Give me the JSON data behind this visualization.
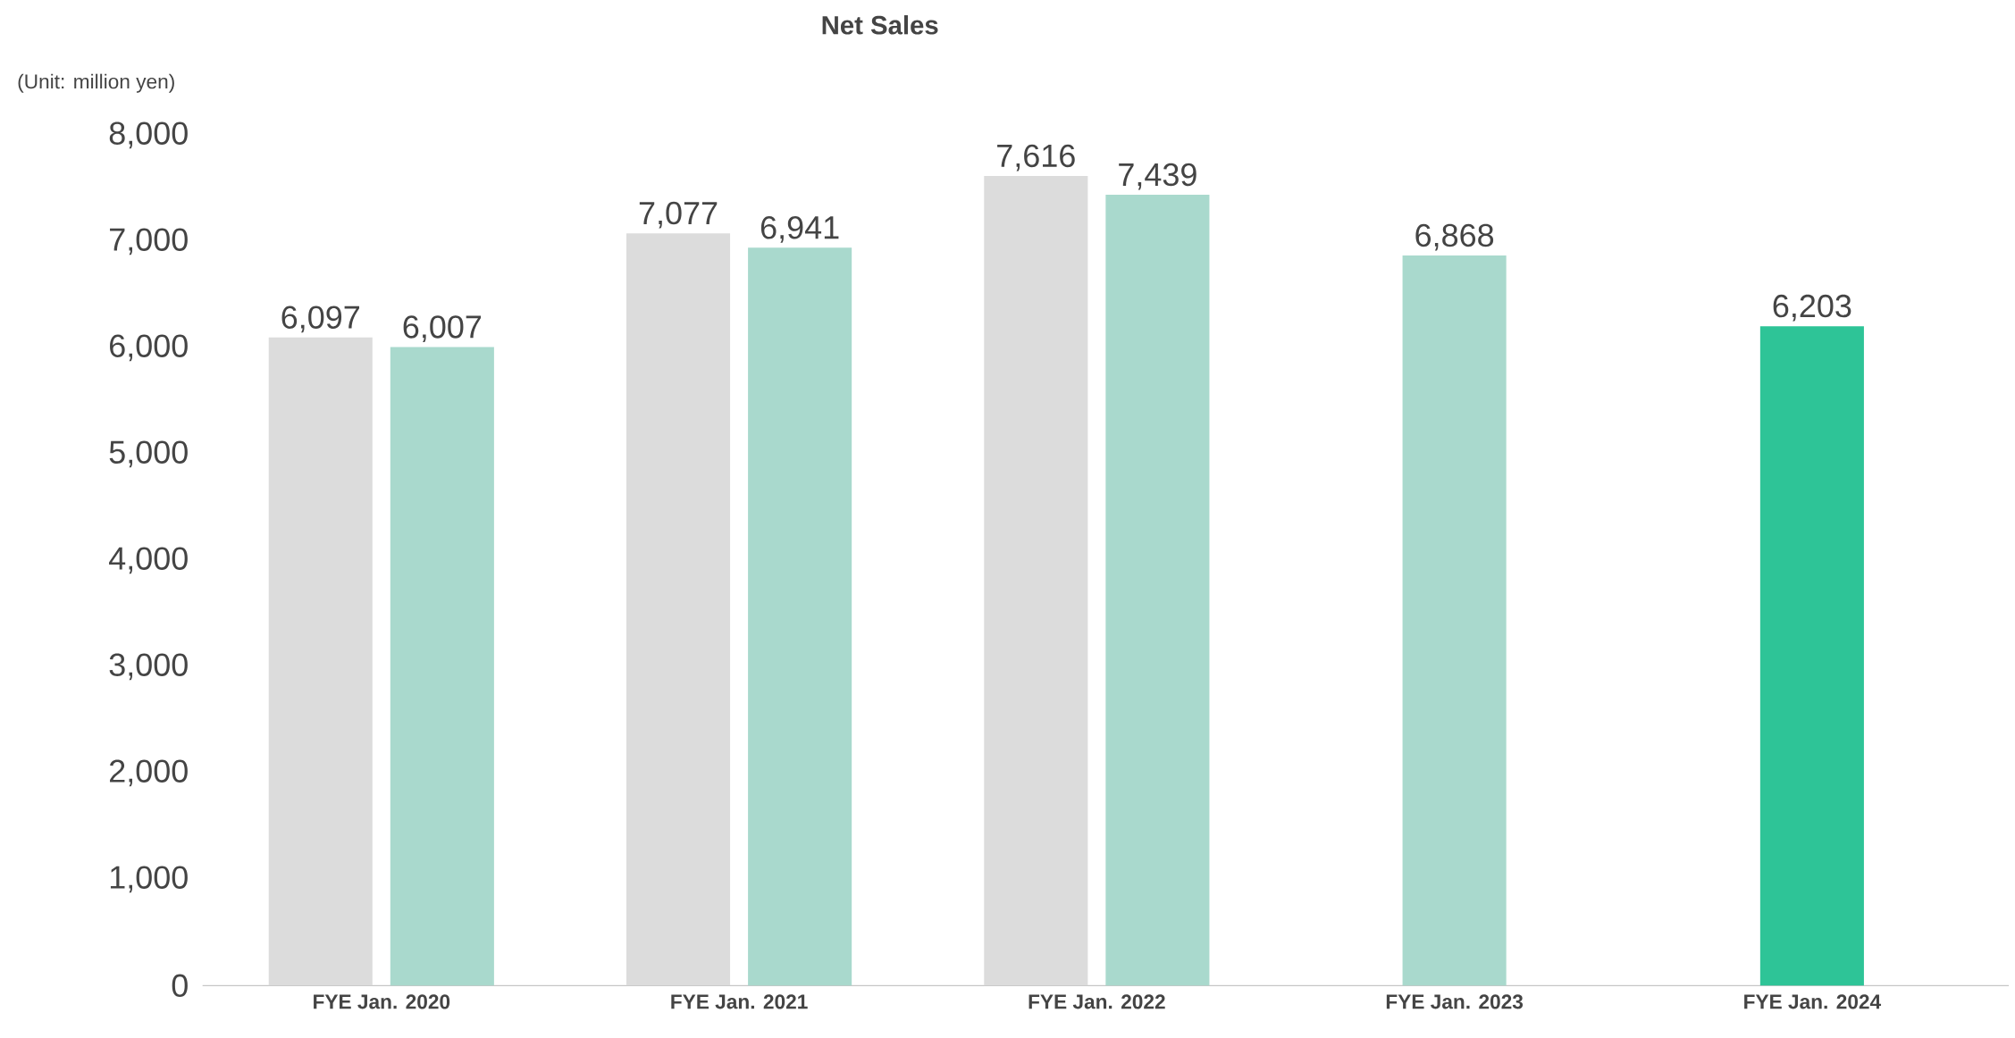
{
  "chart_data": {
    "type": "bar",
    "title": "Net Sales",
    "annotations": [
      "(Unit: million yen)"
    ],
    "categories": [
      "FYE Jan. 2020",
      "FYE Jan. 2021",
      "FYE Jan. 2022",
      "FYE Jan. 2023",
      "FYE Jan. 2024"
    ],
    "series": [
      {
        "color": "#dcdcdc",
        "values": [
          6097,
          7077,
          7616,
          null,
          null
        ],
        "value_labels": [
          "6,097",
          "7,077",
          "7,616",
          null,
          null
        ]
      },
      {
        "color": "#a9d9cd",
        "colors": [
          "#a9d9cd",
          "#a9d9cd",
          "#a9d9cd",
          "#a9d9cd",
          "#2ec497"
        ],
        "values": [
          6007,
          6941,
          7439,
          6868,
          6203
        ],
        "value_labels": [
          "6,007",
          "6,941",
          "7,439",
          "6,868",
          "6,203"
        ]
      }
    ],
    "ylim": [
      0,
      8000
    ],
    "yticks": [
      {
        "value": 0,
        "label": "0"
      },
      {
        "value": 1000,
        "label": "1,000"
      },
      {
        "value": 2000,
        "label": "2,000"
      },
      {
        "value": 3000,
        "label": "3,000"
      },
      {
        "value": 4000,
        "label": "4,000"
      },
      {
        "value": 5000,
        "label": "5,000"
      },
      {
        "value": 6000,
        "label": "6,000"
      },
      {
        "value": 7000,
        "label": "7,000"
      },
      {
        "value": 8000,
        "label": "8,000"
      }
    ]
  }
}
